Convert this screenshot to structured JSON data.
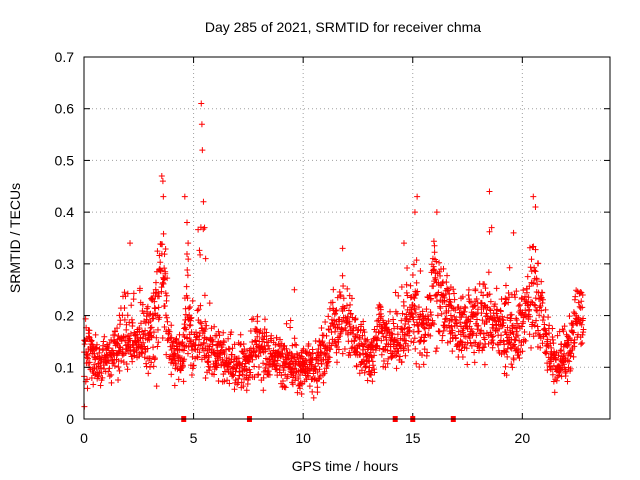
{
  "chart_data": {
    "type": "scatter",
    "title": "Day 285 of 2021, SRMTID for receiver chma",
    "xlabel": "GPS time / hours",
    "ylabel": "SRMTID / TECUs",
    "xlim": [
      0,
      24
    ],
    "ylim": [
      0,
      0.7
    ],
    "xticks": [
      0,
      5,
      10,
      15,
      20
    ],
    "yticks": [
      0,
      0.1,
      0.2,
      0.3,
      0.4,
      0.5,
      0.6,
      0.7
    ],
    "xtick_labels": [
      "0",
      "5",
      "10",
      "15",
      "20"
    ],
    "ytick_labels": [
      "0",
      "0.1",
      "0.2",
      "0.3",
      "0.4",
      "0.5",
      "0.6",
      "0.7"
    ],
    "grid": true,
    "marker": "+",
    "color": "#ff0000",
    "gap_markers_x": [
      4.55,
      7.55,
      14.2,
      15.0,
      16.85
    ],
    "envelope": [
      [
        0.0,
        0.02,
        0.13,
        0.2
      ],
      [
        0.3,
        0.03,
        0.13,
        0.21
      ],
      [
        0.6,
        0.05,
        0.1,
        0.2
      ],
      [
        1.0,
        0.06,
        0.11,
        0.18
      ],
      [
        1.5,
        0.07,
        0.13,
        0.2
      ],
      [
        2.0,
        0.08,
        0.15,
        0.34
      ],
      [
        2.5,
        0.1,
        0.15,
        0.29
      ],
      [
        3.0,
        0.07,
        0.16,
        0.26
      ],
      [
        3.3,
        0.04,
        0.2,
        0.3
      ],
      [
        3.6,
        0.1,
        0.3,
        0.47
      ],
      [
        3.9,
        0.07,
        0.14,
        0.25
      ],
      [
        4.2,
        0.05,
        0.11,
        0.18
      ],
      [
        4.5,
        0.05,
        0.12,
        0.23
      ],
      [
        4.7,
        0.05,
        0.2,
        0.43
      ],
      [
        5.0,
        0.06,
        0.13,
        0.24
      ],
      [
        5.3,
        0.07,
        0.16,
        0.61
      ],
      [
        5.6,
        0.06,
        0.14,
        0.3
      ],
      [
        6.0,
        0.06,
        0.12,
        0.22
      ],
      [
        6.5,
        0.06,
        0.11,
        0.2
      ],
      [
        7.0,
        0.05,
        0.1,
        0.19
      ],
      [
        7.5,
        0.05,
        0.11,
        0.22
      ],
      [
        8.0,
        0.04,
        0.13,
        0.23
      ],
      [
        8.5,
        0.05,
        0.12,
        0.2
      ],
      [
        9.0,
        0.05,
        0.11,
        0.2
      ],
      [
        9.5,
        0.05,
        0.1,
        0.25
      ],
      [
        10.0,
        0.04,
        0.09,
        0.16
      ],
      [
        10.5,
        0.04,
        0.1,
        0.18
      ],
      [
        11.0,
        0.05,
        0.13,
        0.22
      ],
      [
        11.5,
        0.08,
        0.19,
        0.33
      ],
      [
        12.0,
        0.1,
        0.18,
        0.31
      ],
      [
        12.5,
        0.09,
        0.14,
        0.2
      ],
      [
        13.0,
        0.05,
        0.12,
        0.22
      ],
      [
        13.5,
        0.08,
        0.17,
        0.26
      ],
      [
        14.0,
        0.1,
        0.15,
        0.24
      ],
      [
        14.5,
        0.08,
        0.14,
        0.34
      ],
      [
        15.0,
        0.09,
        0.22,
        0.43
      ],
      [
        15.5,
        0.08,
        0.16,
        0.28
      ],
      [
        16.0,
        0.12,
        0.26,
        0.4
      ],
      [
        16.5,
        0.12,
        0.22,
        0.32
      ],
      [
        17.0,
        0.1,
        0.16,
        0.26
      ],
      [
        17.5,
        0.1,
        0.18,
        0.26
      ],
      [
        18.0,
        0.1,
        0.19,
        0.28
      ],
      [
        18.5,
        0.1,
        0.2,
        0.44
      ],
      [
        19.0,
        0.08,
        0.17,
        0.27
      ],
      [
        19.5,
        0.06,
        0.16,
        0.36
      ],
      [
        20.0,
        0.07,
        0.17,
        0.26
      ],
      [
        20.5,
        0.12,
        0.27,
        0.43
      ],
      [
        21.0,
        0.08,
        0.17,
        0.26
      ],
      [
        21.5,
        0.05,
        0.1,
        0.18
      ],
      [
        22.0,
        0.05,
        0.12,
        0.22
      ],
      [
        22.5,
        0.1,
        0.19,
        0.28
      ],
      [
        22.8,
        0.12,
        0.2,
        0.28
      ]
    ],
    "spike_points": [
      [
        3.55,
        0.47
      ],
      [
        3.6,
        0.46
      ],
      [
        3.62,
        0.43
      ],
      [
        4.6,
        0.43
      ],
      [
        4.7,
        0.38
      ],
      [
        4.75,
        0.34
      ],
      [
        5.35,
        0.61
      ],
      [
        5.38,
        0.57
      ],
      [
        5.4,
        0.52
      ],
      [
        5.45,
        0.42
      ],
      [
        5.5,
        0.37
      ],
      [
        5.55,
        0.31
      ],
      [
        15.2,
        0.43
      ],
      [
        15.1,
        0.4
      ],
      [
        16.1,
        0.4
      ],
      [
        18.5,
        0.44
      ],
      [
        20.5,
        0.43
      ],
      [
        20.6,
        0.41
      ],
      [
        2.1,
        0.34
      ],
      [
        11.8,
        0.33
      ],
      [
        14.6,
        0.34
      ],
      [
        9.6,
        0.25
      ],
      [
        18.6,
        0.37
      ],
      [
        19.6,
        0.36
      ]
    ]
  }
}
